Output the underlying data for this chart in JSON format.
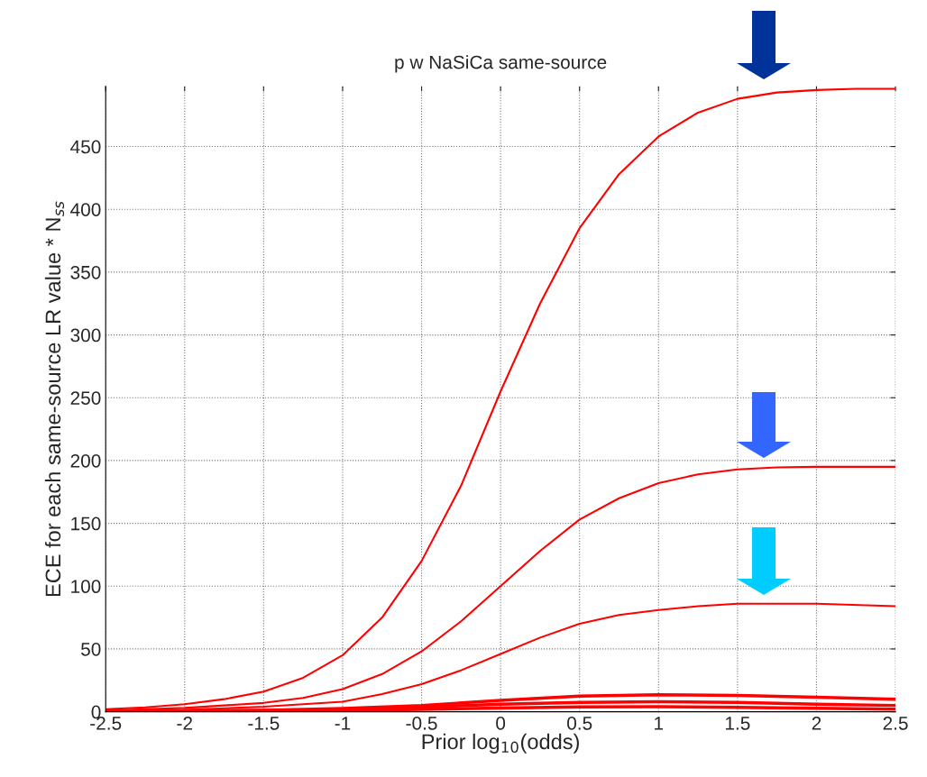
{
  "chart_data": {
    "type": "line",
    "title": "p w NaSiCa same-source",
    "xlabel": "Prior log$_{10}$(odds)",
    "ylabel": "ECE for each same-source LR value * N$_{ss}$",
    "xlim": [
      -2.5,
      2.5
    ],
    "ylim": [
      0,
      498
    ],
    "xticks": [
      -2.5,
      -2,
      -1.5,
      -1,
      -0.5,
      0,
      0.5,
      1,
      1.5,
      2,
      2.5
    ],
    "yticks": [
      0,
      50,
      100,
      150,
      200,
      250,
      300,
      350,
      400,
      450
    ],
    "grid": true,
    "line_style": "solid",
    "marker": "none",
    "series": [
      {
        "color": "#ff0000",
        "x": [
          -2.5,
          -2.25,
          -2,
          -1.75,
          -1.5,
          -1.25,
          -1,
          -0.75,
          -0.5,
          -0.25,
          0,
          0.25,
          0.5,
          0.75,
          1,
          1.25,
          1.5,
          1.75,
          2,
          2.25,
          2.5
        ],
        "values": [
          2,
          3.5,
          6,
          10,
          16,
          27,
          45,
          75,
          120,
          180,
          255,
          325,
          385,
          428,
          458,
          477,
          488,
          493,
          495,
          496,
          496
        ]
      },
      {
        "color": "#ff0000",
        "x": [
          -2.5,
          -2,
          -1.5,
          -1.25,
          -1,
          -0.75,
          -0.5,
          -0.25,
          0,
          0.25,
          0.5,
          0.75,
          1,
          1.25,
          1.5,
          1.75,
          2,
          2.5
        ],
        "values": [
          1,
          3,
          7,
          11,
          18,
          30,
          48,
          72,
          100,
          128,
          153,
          170,
          182,
          189,
          193,
          194.5,
          195,
          195
        ]
      },
      {
        "color": "#ff0000",
        "x": [
          -2.5,
          -2,
          -1.5,
          -1,
          -0.75,
          -0.5,
          -0.25,
          0,
          0.25,
          0.5,
          0.75,
          1,
          1.25,
          1.5,
          2,
          2.5
        ],
        "values": [
          0.5,
          1.5,
          4,
          8,
          14,
          22,
          33,
          46,
          59,
          70,
          77,
          81,
          84,
          86,
          86,
          84
        ]
      },
      {
        "color": "#ff0000",
        "x": [
          -2.5,
          -1.5,
          -1,
          -0.5,
          0,
          0.5,
          1,
          1.5,
          2,
          2.5
        ],
        "values": [
          0.3,
          1.2,
          2.5,
          5,
          9,
          12.5,
          13.5,
          13,
          11.5,
          10
        ]
      },
      {
        "color": "#ff0000",
        "x": [
          -2.5,
          -1,
          -0.5,
          0,
          0.5,
          1,
          1.5,
          2,
          2.5
        ],
        "values": [
          0.2,
          1.5,
          3.5,
          6,
          7.5,
          8,
          7.5,
          6,
          5
        ]
      },
      {
        "color": "#ff0000",
        "x": [
          -2.5,
          -1,
          0,
          0.5,
          1,
          1.5,
          2,
          2.5
        ],
        "values": [
          0.1,
          0.8,
          3,
          3.8,
          4,
          3.5,
          2.8,
          2
        ]
      }
    ]
  }
}
